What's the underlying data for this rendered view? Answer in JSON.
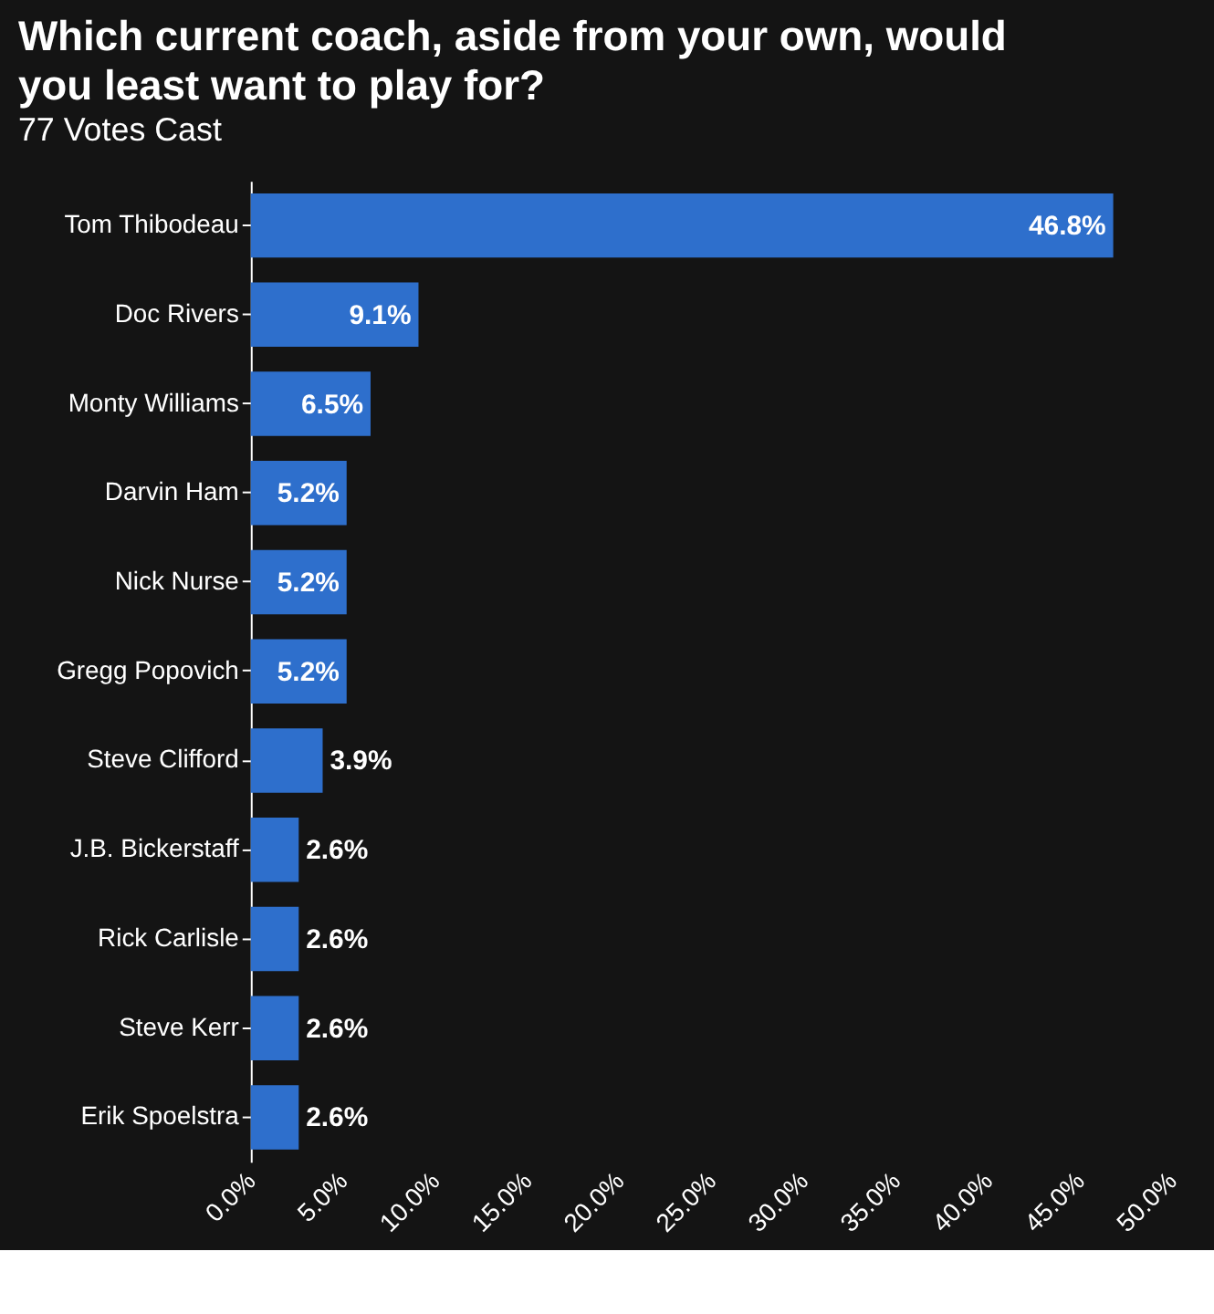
{
  "chart_data": {
    "type": "bar",
    "orientation": "horizontal",
    "title": "Which current coach, aside from your own, would you least want to play for?",
    "subtitle": "77 Votes Cast",
    "categories": [
      "Tom Thibodeau",
      "Doc Rivers",
      "Monty Williams",
      "Darvin Ham",
      "Nick Nurse",
      "Gregg Popovich",
      "Steve Clifford",
      "J.B. Bickerstaff",
      "Rick Carlisle",
      "Steve Kerr",
      "Erik Spoelstra"
    ],
    "values": [
      46.8,
      9.1,
      6.5,
      5.2,
      5.2,
      5.2,
      3.9,
      2.6,
      2.6,
      2.6,
      2.6
    ],
    "value_labels": [
      "46.8%",
      "9.1%",
      "6.5%",
      "5.2%",
      "5.2%",
      "5.2%",
      "3.9%",
      "2.6%",
      "2.6%",
      "2.6%",
      "2.6%"
    ],
    "color": "#2e6fcc",
    "xlim": [
      0,
      50
    ],
    "xticks": [
      {
        "value": 0,
        "label": "0.0%"
      },
      {
        "value": 5,
        "label": "5.0%"
      },
      {
        "value": 10,
        "label": "10.0%"
      },
      {
        "value": 15,
        "label": "15.0%"
      },
      {
        "value": 20,
        "label": "20.0%"
      },
      {
        "value": 25,
        "label": "25.0%"
      },
      {
        "value": 30,
        "label": "30.0%"
      },
      {
        "value": 35,
        "label": "35.0%"
      },
      {
        "value": 40,
        "label": "40.0%"
      },
      {
        "value": 45,
        "label": "45.0%"
      },
      {
        "value": 50,
        "label": "50.0%"
      }
    ],
    "grid": false
  }
}
